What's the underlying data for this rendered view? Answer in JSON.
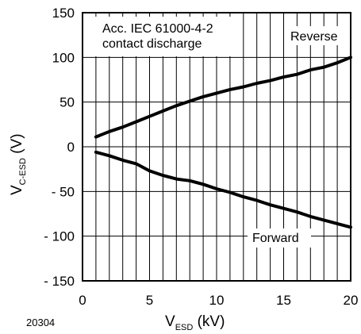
{
  "chart_data": {
    "type": "line",
    "annotation": [
      "Acc. IEC 61000-4-2",
      "contact discharge"
    ],
    "figure_id": "20304",
    "xlabel": {
      "main": "V",
      "sub": "ESD",
      "unit": " (kV)"
    },
    "ylabel": {
      "main": "V",
      "sub": "C-ESD",
      "unit": " (V)"
    },
    "xlim": [
      0,
      20
    ],
    "ylim": [
      -150,
      150
    ],
    "x_ticks": [
      0,
      5,
      10,
      15,
      20
    ],
    "x_tick_labels": [
      "0",
      "5",
      "10",
      "15",
      "20"
    ],
    "y_ticks": [
      150,
      100,
      50,
      0,
      -50,
      -100,
      -150
    ],
    "y_tick_labels": [
      "150",
      "100",
      "50",
      "0",
      "- 50",
      "- 100",
      "- 150"
    ],
    "grid": {
      "x_step": 1,
      "y_step": 10
    },
    "series": [
      {
        "name": "Reverse",
        "x": [
          1,
          2,
          3,
          4,
          5,
          6,
          7,
          8,
          9,
          10,
          11,
          12,
          13,
          14,
          15,
          16,
          17,
          18,
          19,
          20
        ],
        "y": [
          11,
          17,
          22,
          28,
          34,
          40,
          46,
          51,
          56,
          60,
          64,
          67,
          71,
          74,
          78,
          81,
          86,
          89,
          94,
          100
        ]
      },
      {
        "name": "Forward",
        "x": [
          1,
          2,
          3,
          4,
          5,
          6,
          7,
          8,
          9,
          10,
          11,
          12,
          13,
          14,
          15,
          16,
          17,
          18,
          19,
          20
        ],
        "y": [
          -6,
          -10,
          -15,
          -19,
          -27,
          -32,
          -36,
          -38,
          -42,
          -47,
          -51,
          -56,
          -60,
          -65,
          -69,
          -73,
          -78,
          -82,
          -86,
          -90
        ]
      }
    ]
  }
}
